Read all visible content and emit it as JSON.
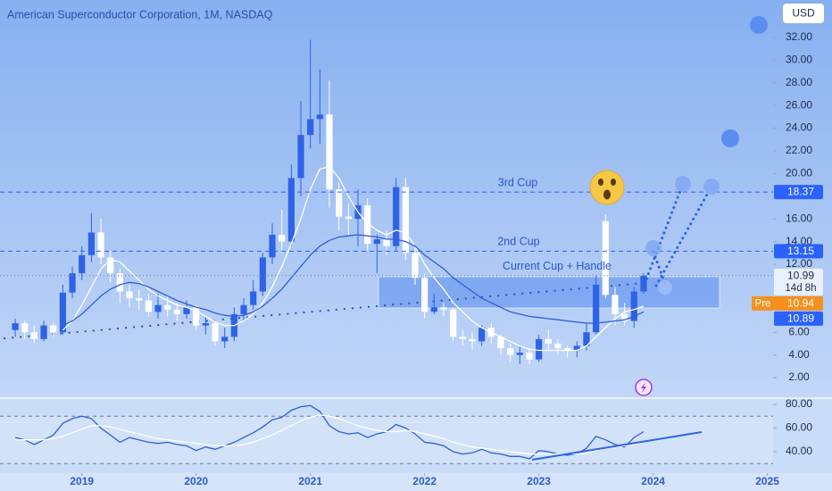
{
  "header": {
    "title": "American Superconductor Corporation, 1M, NASDAQ",
    "currency": "USD"
  },
  "chart_data": [
    {
      "type": "candlestick",
      "up_color": "#2e63e6",
      "down_color": "#ffffff",
      "open": [
        6.2,
        6.8,
        6.0,
        5.4,
        6.6,
        6.0,
        9.5,
        11.2,
        12.8,
        14.8,
        12.6,
        11.2,
        9.6,
        9.0,
        8.8,
        7.8,
        8.4,
        8.0,
        7.6,
        8.2,
        6.6,
        6.8,
        5.2,
        5.6,
        7.6,
        8.4,
        9.6,
        12.6,
        14.6,
        14.0,
        19.6,
        23.4,
        24.8,
        25.2,
        18.6,
        16.2,
        16.0,
        17.2,
        13.8,
        14.2,
        13.6,
        18.8,
        13.0,
        10.8,
        7.8,
        8.2,
        8.0,
        5.6,
        5.4,
        5.2,
        6.4,
        5.6,
        4.6,
        4.0,
        4.2,
        3.6,
        5.4,
        5.0,
        4.6,
        4.4,
        4.8,
        6.0,
        15.8,
        9.3,
        7.6,
        7.0,
        9.6
      ],
      "high": [
        7.2,
        7.0,
        6.6,
        7.0,
        6.8,
        10.2,
        11.8,
        13.6,
        16.5,
        16.0,
        13.2,
        11.6,
        10.2,
        9.8,
        9.4,
        9.4,
        9.2,
        8.6,
        8.8,
        8.4,
        7.4,
        7.2,
        6.4,
        8.2,
        9.0,
        10.6,
        13.0,
        15.6,
        16.8,
        20.8,
        26.4,
        31.8,
        29.2,
        28.2,
        19.2,
        17.4,
        18.6,
        17.8,
        14.6,
        15.0,
        19.6,
        19.6,
        13.6,
        11.2,
        9.4,
        8.6,
        8.2,
        6.2,
        6.0,
        6.6,
        6.8,
        5.8,
        5.0,
        4.8,
        4.6,
        5.8,
        6.2,
        5.4,
        4.8,
        5.2,
        6.8,
        11.0,
        16.4,
        10.0,
        8.6,
        10.0,
        11.2
      ],
      "low": [
        5.6,
        5.4,
        5.0,
        5.2,
        5.6,
        5.8,
        9.0,
        10.6,
        12.2,
        12.0,
        10.4,
        8.6,
        8.2,
        8.0,
        7.4,
        7.2,
        7.4,
        7.0,
        7.2,
        6.2,
        5.8,
        4.8,
        4.6,
        5.2,
        7.0,
        8.0,
        9.2,
        12.0,
        13.0,
        13.6,
        18.0,
        22.2,
        22.6,
        17.0,
        15.0,
        14.6,
        13.6,
        13.2,
        11.2,
        12.8,
        13.2,
        12.4,
        10.2,
        7.2,
        7.6,
        7.4,
        5.2,
        4.8,
        4.4,
        4.8,
        5.0,
        4.0,
        3.4,
        3.2,
        3.2,
        3.4,
        4.4,
        4.0,
        3.8,
        3.8,
        4.4,
        5.8,
        9.0,
        6.6,
        6.6,
        6.4,
        9.4
      ],
      "close": [
        6.8,
        6.0,
        5.4,
        6.6,
        6.0,
        9.5,
        11.2,
        12.8,
        14.8,
        12.6,
        11.2,
        9.6,
        9.0,
        8.8,
        7.8,
        8.4,
        8.0,
        7.6,
        8.2,
        6.6,
        6.8,
        5.2,
        5.6,
        7.6,
        8.4,
        9.6,
        12.6,
        14.6,
        14.0,
        19.6,
        23.4,
        24.8,
        25.2,
        18.6,
        16.2,
        16.0,
        17.2,
        13.8,
        14.2,
        13.6,
        18.8,
        13.0,
        10.8,
        7.8,
        8.2,
        8.0,
        5.6,
        5.4,
        5.2,
        6.4,
        5.6,
        4.6,
        4.0,
        4.2,
        3.6,
        5.4,
        5.0,
        4.6,
        4.4,
        4.8,
        6.0,
        10.2,
        9.3,
        7.6,
        7.0,
        9.6,
        10.99
      ],
      "series": [
        {
          "color": "#ffffff",
          "values": [
            null,
            null,
            null,
            null,
            null,
            6.2,
            7.0,
            8.4,
            10.0,
            11.6,
            12.4,
            12.2,
            11.4,
            10.6,
            9.8,
            9.2,
            8.8,
            8.4,
            8.2,
            7.9,
            7.4,
            6.9,
            6.6,
            6.6,
            7.0,
            7.6,
            8.6,
            10.0,
            11.8,
            13.8,
            16.0,
            18.6,
            20.4,
            20.6,
            19.6,
            18.0,
            16.6,
            15.6,
            15.0,
            14.6,
            15.0,
            14.8,
            13.6,
            12.0,
            10.8,
            9.8,
            8.6,
            7.8,
            7.0,
            6.4,
            6.0,
            5.6,
            5.2,
            4.8,
            4.5,
            4.4,
            4.4,
            4.4,
            4.4,
            4.4,
            4.8,
            5.6,
            6.4,
            7.2,
            7.8,
            8.0,
            8.3
          ]
        },
        {
          "color": "#2f5fd8",
          "values": [
            null,
            null,
            null,
            null,
            null,
            6.6,
            7.0,
            7.6,
            8.4,
            9.2,
            9.8,
            10.2,
            10.4,
            10.3,
            10.0,
            9.6,
            9.2,
            8.8,
            8.5,
            8.2,
            8.0,
            7.7,
            7.5,
            7.4,
            7.5,
            7.8,
            8.3,
            9.0,
            9.8,
            10.8,
            11.8,
            12.8,
            13.6,
            14.1,
            14.4,
            14.5,
            14.6,
            14.5,
            14.4,
            14.2,
            14.2,
            14.0,
            13.6,
            12.8,
            12.2,
            11.6,
            10.8,
            10.2,
            9.6,
            9.0,
            8.6,
            8.2,
            7.8,
            7.6,
            7.4,
            7.3,
            7.2,
            7.1,
            7.0,
            6.9,
            6.8,
            6.8,
            6.9,
            7.0,
            7.1,
            7.4,
            7.8
          ]
        }
      ],
      "xlim": [
        -1.6,
        79.6
      ],
      "ylim": [
        0.27,
        35.3
      ],
      "yticks": [
        {
          "value": 2,
          "label": "2.00"
        },
        {
          "value": 4,
          "label": "4.00"
        },
        {
          "value": 6,
          "label": "6.00"
        },
        {
          "value": 12,
          "label": "12.00"
        },
        {
          "value": 14,
          "label": "14.00"
        },
        {
          "value": 16,
          "label": "16.00"
        },
        {
          "value": 18,
          "label": "18.00"
        },
        {
          "value": 20,
          "label": "20.00"
        },
        {
          "value": 22,
          "label": "22.00"
        },
        {
          "value": 24,
          "label": "24.00"
        },
        {
          "value": 26,
          "label": "26.00"
        },
        {
          "value": 28,
          "label": "28.00"
        },
        {
          "value": 30,
          "label": "30.00"
        },
        {
          "value": 32,
          "label": "32.00"
        }
      ],
      "price_lines": [
        {
          "value": 18.37,
          "note": "3rd Cup",
          "color": "#2962ff"
        },
        {
          "value": 13.15,
          "note": "2nd Cup",
          "color": "#2962ff"
        }
      ],
      "last_price": {
        "value": 10.99,
        "note": "Current Cup + Handle",
        "countdown": "14d 8h"
      },
      "premarket": {
        "tag": "Pre",
        "value": 10.94
      },
      "marker_price": 10.89
    },
    {
      "type": "line",
      "series": [
        {
          "color": "#2f5fd8",
          "values": [
            52,
            50,
            46,
            50,
            54,
            64,
            68,
            70,
            68,
            60,
            54,
            48,
            52,
            50,
            48,
            47,
            48,
            46,
            45,
            41,
            44,
            42,
            45,
            48,
            52,
            56,
            61,
            67,
            69,
            75,
            78,
            79,
            74,
            62,
            57,
            55,
            56,
            52,
            55,
            57,
            63,
            60,
            55,
            48,
            47,
            45,
            40,
            38,
            39,
            42,
            39,
            38,
            36,
            36,
            34,
            41,
            40,
            38,
            37,
            38,
            43,
            53,
            50,
            46,
            44,
            52,
            57
          ]
        },
        {
          "color": "#ffffff",
          "values": [
            50,
            50,
            50,
            50,
            51,
            53,
            56,
            59,
            62,
            62,
            61,
            59,
            57,
            55,
            53,
            51,
            50,
            49,
            48,
            47,
            46,
            45,
            45,
            45,
            46,
            48,
            51,
            54,
            58,
            62,
            66,
            69,
            71,
            70,
            68,
            65,
            62,
            60,
            58,
            57,
            57,
            58,
            57,
            55,
            53,
            51,
            48,
            46,
            44,
            43,
            42,
            41,
            40,
            39,
            38,
            38,
            38,
            38,
            38,
            38,
            39,
            41,
            43,
            44,
            45,
            46,
            48
          ]
        }
      ],
      "xlim": [
        -1.6,
        79.6
      ],
      "ylim": [
        23.4,
        84.5
      ],
      "yticks": [
        {
          "value": 40,
          "label": "40.00"
        },
        {
          "value": 60,
          "label": "60.00"
        },
        {
          "value": 80,
          "label": "80.00"
        }
      ],
      "bands": [
        30,
        70
      ],
      "xticks": [
        {
          "value": 7,
          "label": "2019"
        },
        {
          "value": 19,
          "label": "2020"
        },
        {
          "value": 31,
          "label": "2021"
        },
        {
          "value": 43,
          "label": "2022"
        },
        {
          "value": 55,
          "label": "2023"
        },
        {
          "value": 67,
          "label": "2024"
        },
        {
          "value": 79,
          "label": "2025"
        }
      ]
    }
  ]
}
